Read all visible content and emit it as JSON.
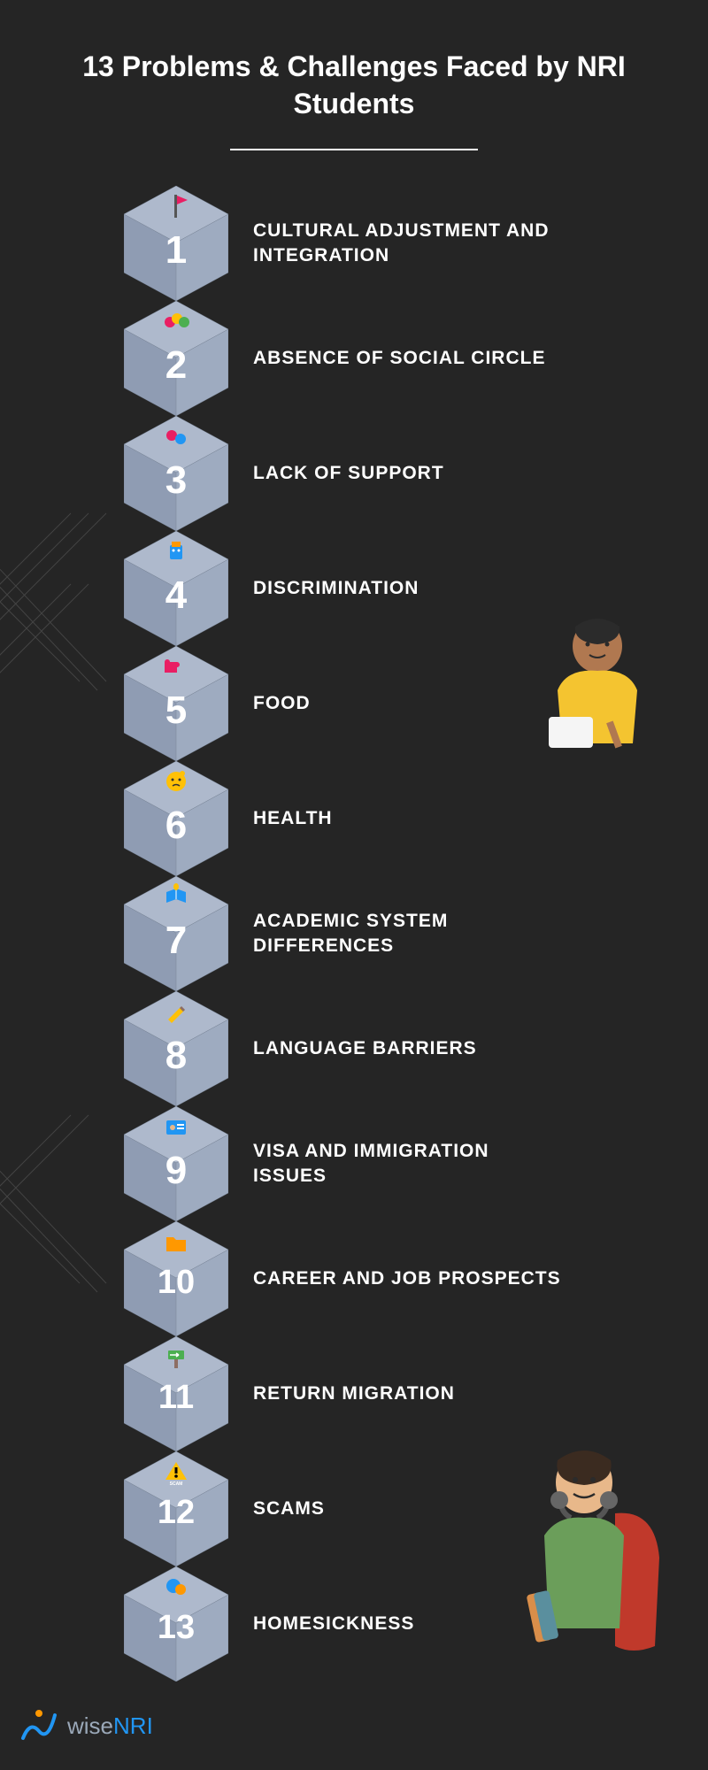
{
  "title": "13 Problems & Challenges Faced by NRI Students",
  "cube": {
    "top_fill": "#aeb9cc",
    "left_fill": "#8f9cb3",
    "right_fill": "#9eabc0",
    "stroke": "#7a8698"
  },
  "items": [
    {
      "num": "1",
      "label": "CULTURAL ADJUSTMENT AND INTEGRATION",
      "icon": "flag"
    },
    {
      "num": "2",
      "label": "ABSENCE OF SOCIAL CIRCLE",
      "icon": "faces"
    },
    {
      "num": "3",
      "label": "LACK OF SUPPORT",
      "icon": "gears"
    },
    {
      "num": "4",
      "label": "DISCRIMINATION",
      "icon": "robot"
    },
    {
      "num": "5",
      "label": "FOOD",
      "icon": "puzzle"
    },
    {
      "num": "6",
      "label": "HEALTH",
      "icon": "think"
    },
    {
      "num": "7",
      "label": "ACADEMIC SYSTEM DIFFERENCES",
      "icon": "book"
    },
    {
      "num": "8",
      "label": "LANGUAGE BARRIERS",
      "icon": "write"
    },
    {
      "num": "9",
      "label": "VISA AND IMMIGRATION ISSUES",
      "icon": "id"
    },
    {
      "num": "10",
      "label": "CAREER AND JOB PROSPECTS",
      "icon": "folder"
    },
    {
      "num": "11",
      "label": "RETURN MIGRATION",
      "icon": "sign"
    },
    {
      "num": "12",
      "label": "SCAMS",
      "icon": "warn"
    },
    {
      "num": "13",
      "label": "HOMESICKNESS",
      "icon": "globe"
    }
  ],
  "logo": {
    "pre": "wise",
    "accent": "NRI"
  },
  "colors": {
    "bg": "#252525",
    "text": "#ffffff",
    "flag": "#e91e63",
    "pink": "#e91e63",
    "yellow": "#ffc107",
    "green": "#4caf50",
    "orange": "#ff9800",
    "blue": "#2196f3",
    "brown": "#8d6e63",
    "warn_y": "#ffc107",
    "warn_b": "#000000"
  }
}
